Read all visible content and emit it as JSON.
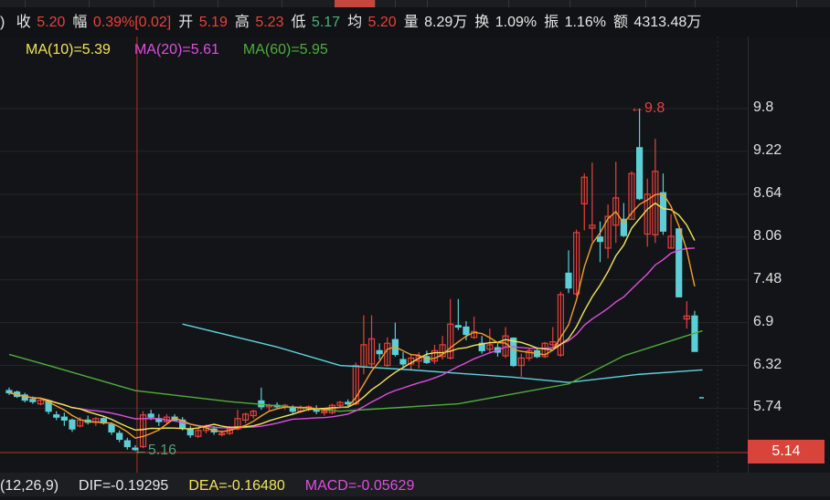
{
  "quote_bar": {
    "lead": ")",
    "items": [
      {
        "label": "收",
        "value": "5.20",
        "tone": "up"
      },
      {
        "label": "幅",
        "value": "0.39%[0.02]",
        "tone": "up"
      },
      {
        "label": "开",
        "value": "5.19",
        "tone": "up"
      },
      {
        "label": "高",
        "value": "5.23",
        "tone": "up"
      },
      {
        "label": "低",
        "value": "5.17",
        "tone": "dn"
      },
      {
        "label": "均",
        "value": "5.20",
        "tone": "up"
      },
      {
        "label": "量",
        "value": "8.29万",
        "tone": "wt"
      },
      {
        "label": "换",
        "value": "1.09%",
        "tone": "wt"
      },
      {
        "label": "振",
        "value": "1.16%",
        "tone": "wt"
      },
      {
        "label": "额",
        "value": "4313.48万",
        "tone": "wt"
      }
    ]
  },
  "ma_legend": [
    {
      "text": "MA(10)=5.39",
      "color": "#f2e45c"
    },
    {
      "text": "MA(20)=5.61",
      "color": "#e04ee0"
    },
    {
      "text": "MA(60)=5.95",
      "color": "#4fae3c"
    }
  ],
  "macd_bar": [
    {
      "text": "(12,26,9)",
      "color": "#e8e8e8"
    },
    {
      "text": "DIF=-0.19295",
      "color": "#e8e8e8"
    },
    {
      "text": "DEA=-0.16480",
      "color": "#f2e45c"
    },
    {
      "text": "MACD=-0.05629",
      "color": "#e04ee0"
    }
  ],
  "chart_data": {
    "type": "candlestick",
    "yticks": [
      "9.8",
      "9.22",
      "8.64",
      "8.06",
      "7.48",
      "6.9",
      "6.32",
      "5.74"
    ],
    "current_price": "5.14",
    "crosshair_index": 16,
    "annotations": [
      {
        "text": "←9.8",
        "index": 79,
        "value": 9.8,
        "color": "#e8413c"
      },
      {
        "text": "←5.16",
        "index": 16,
        "value": 5.16,
        "color": "#4f9f7a"
      }
    ],
    "colors": {
      "up": "#e8413c",
      "down": "#5ccfd6",
      "ma5": "#f0a030",
      "ma10": "#f2e45c",
      "ma20": "#e04ee0",
      "ma60": "#4fae3c",
      "long": "#5fd3e0"
    },
    "candles_ohlc": [
      [
        5.98,
        6.02,
        5.92,
        5.95
      ],
      [
        5.96,
        5.98,
        5.88,
        5.9
      ],
      [
        5.92,
        5.95,
        5.82,
        5.85
      ],
      [
        5.86,
        5.9,
        5.8,
        5.83
      ],
      [
        5.8,
        5.88,
        5.78,
        5.85
      ],
      [
        5.84,
        5.86,
        5.66,
        5.7
      ],
      [
        5.65,
        5.7,
        5.58,
        5.62
      ],
      [
        5.62,
        5.68,
        5.5,
        5.58
      ],
      [
        5.58,
        5.6,
        5.42,
        5.46
      ],
      [
        5.5,
        5.62,
        5.48,
        5.58
      ],
      [
        5.58,
        5.64,
        5.52,
        5.55
      ],
      [
        5.55,
        5.62,
        5.5,
        5.6
      ],
      [
        5.6,
        5.62,
        5.52,
        5.54
      ],
      [
        5.52,
        5.55,
        5.38,
        5.42
      ],
      [
        5.4,
        5.44,
        5.28,
        5.32
      ],
      [
        5.3,
        5.34,
        5.18,
        5.22
      ],
      [
        5.2,
        5.24,
        5.16,
        5.18
      ],
      [
        5.22,
        5.7,
        5.2,
        5.65
      ],
      [
        5.66,
        5.72,
        5.58,
        5.62
      ],
      [
        5.6,
        5.66,
        5.5,
        5.56
      ],
      [
        5.56,
        5.66,
        5.52,
        5.62
      ],
      [
        5.62,
        5.66,
        5.56,
        5.58
      ],
      [
        5.58,
        5.62,
        5.44,
        5.48
      ],
      [
        5.46,
        5.5,
        5.34,
        5.38
      ],
      [
        5.36,
        5.48,
        5.34,
        5.44
      ],
      [
        5.44,
        5.52,
        5.4,
        5.48
      ],
      [
        5.46,
        5.5,
        5.38,
        5.42
      ],
      [
        5.4,
        5.44,
        5.36,
        5.4
      ],
      [
        5.4,
        5.5,
        5.38,
        5.46
      ],
      [
        5.46,
        5.72,
        5.44,
        5.6
      ],
      [
        5.58,
        5.68,
        5.54,
        5.66
      ],
      [
        5.64,
        5.72,
        5.6,
        5.7
      ],
      [
        5.84,
        6.02,
        5.72,
        5.76
      ],
      [
        5.76,
        5.8,
        5.7,
        5.78
      ],
      [
        5.78,
        5.82,
        5.74,
        5.76
      ],
      [
        5.76,
        5.8,
        5.72,
        5.78
      ],
      [
        5.74,
        5.78,
        5.66,
        5.7
      ],
      [
        5.7,
        5.78,
        5.68,
        5.74
      ],
      [
        5.74,
        5.78,
        5.7,
        5.76
      ],
      [
        5.72,
        5.78,
        5.66,
        5.7
      ],
      [
        5.68,
        5.74,
        5.64,
        5.7
      ],
      [
        5.68,
        5.8,
        5.66,
        5.78
      ],
      [
        5.78,
        5.84,
        5.74,
        5.82
      ],
      [
        5.82,
        5.86,
        5.76,
        5.8
      ],
      [
        5.8,
        6.36,
        5.78,
        6.32
      ],
      [
        6.3,
        7.0,
        6.2,
        6.6
      ],
      [
        6.34,
        7.0,
        6.3,
        6.68
      ],
      [
        6.52,
        6.62,
        6.4,
        6.48
      ],
      [
        6.32,
        6.7,
        6.3,
        6.62
      ],
      [
        6.67,
        6.9,
        6.44,
        6.47
      ],
      [
        6.4,
        6.5,
        6.3,
        6.34
      ],
      [
        6.34,
        6.48,
        6.26,
        6.42
      ],
      [
        6.38,
        6.5,
        6.28,
        6.44
      ],
      [
        6.44,
        6.52,
        6.34,
        6.36
      ],
      [
        6.38,
        6.6,
        6.34,
        6.52
      ],
      [
        6.44,
        6.72,
        6.4,
        6.6
      ],
      [
        6.42,
        7.22,
        6.4,
        6.88
      ],
      [
        6.86,
        7.22,
        6.8,
        6.84
      ],
      [
        6.84,
        6.92,
        6.66,
        6.74
      ],
      [
        6.7,
        6.98,
        6.68,
        6.78
      ],
      [
        6.62,
        6.72,
        6.48,
        6.52
      ],
      [
        6.54,
        6.82,
        6.5,
        6.6
      ],
      [
        6.56,
        6.62,
        6.44,
        6.5
      ],
      [
        6.45,
        6.84,
        6.42,
        6.72
      ],
      [
        6.69,
        6.7,
        6.3,
        6.32
      ],
      [
        6.32,
        6.48,
        6.17,
        6.42
      ],
      [
        6.42,
        6.55,
        6.38,
        6.52
      ],
      [
        6.52,
        6.56,
        6.42,
        6.44
      ],
      [
        6.44,
        6.64,
        6.42,
        6.62
      ],
      [
        6.6,
        6.84,
        6.56,
        6.64
      ],
      [
        6.46,
        7.32,
        6.44,
        7.28
      ],
      [
        7.57,
        7.88,
        7.3,
        7.37
      ],
      [
        7.29,
        8.16,
        7.26,
        8.12
      ],
      [
        8.51,
        8.92,
        8.15,
        8.87
      ],
      [
        8.18,
        9.07,
        8.0,
        8.22
      ],
      [
        8.06,
        8.27,
        7.72,
        8.0
      ],
      [
        7.91,
        8.5,
        7.77,
        8.34
      ],
      [
        8.22,
        9.08,
        7.98,
        8.59
      ],
      [
        8.3,
        8.52,
        8.06,
        8.08
      ],
      [
        8.3,
        8.95,
        8.3,
        8.92
      ],
      [
        9.27,
        9.8,
        8.56,
        8.58
      ],
      [
        8.1,
        8.85,
        7.93,
        8.64
      ],
      [
        8.09,
        9.39,
        7.98,
        8.95
      ],
      [
        8.66,
        8.92,
        8.09,
        8.14
      ],
      [
        7.91,
        8.37,
        7.9,
        8.07
      ],
      [
        8.17,
        8.17,
        7.25,
        7.25
      ],
      [
        6.95,
        7.19,
        6.82,
        6.99
      ],
      [
        6.99,
        7.06,
        6.51,
        6.51
      ]
    ],
    "ma60_points": [
      [
        0,
        6.47
      ],
      [
        5,
        6.32
      ],
      [
        16,
        5.98
      ],
      [
        28,
        5.83
      ],
      [
        42,
        5.7
      ],
      [
        57,
        5.8
      ],
      [
        71,
        6.07
      ],
      [
        78,
        6.45
      ],
      [
        88,
        6.79
      ]
    ],
    "long_ma_points": [
      [
        22,
        6.88
      ],
      [
        34,
        6.57
      ],
      [
        42,
        6.32
      ],
      [
        51,
        6.26
      ],
      [
        64,
        6.16
      ],
      [
        71,
        6.09
      ],
      [
        80,
        6.2
      ],
      [
        88,
        6.26
      ]
    ]
  }
}
